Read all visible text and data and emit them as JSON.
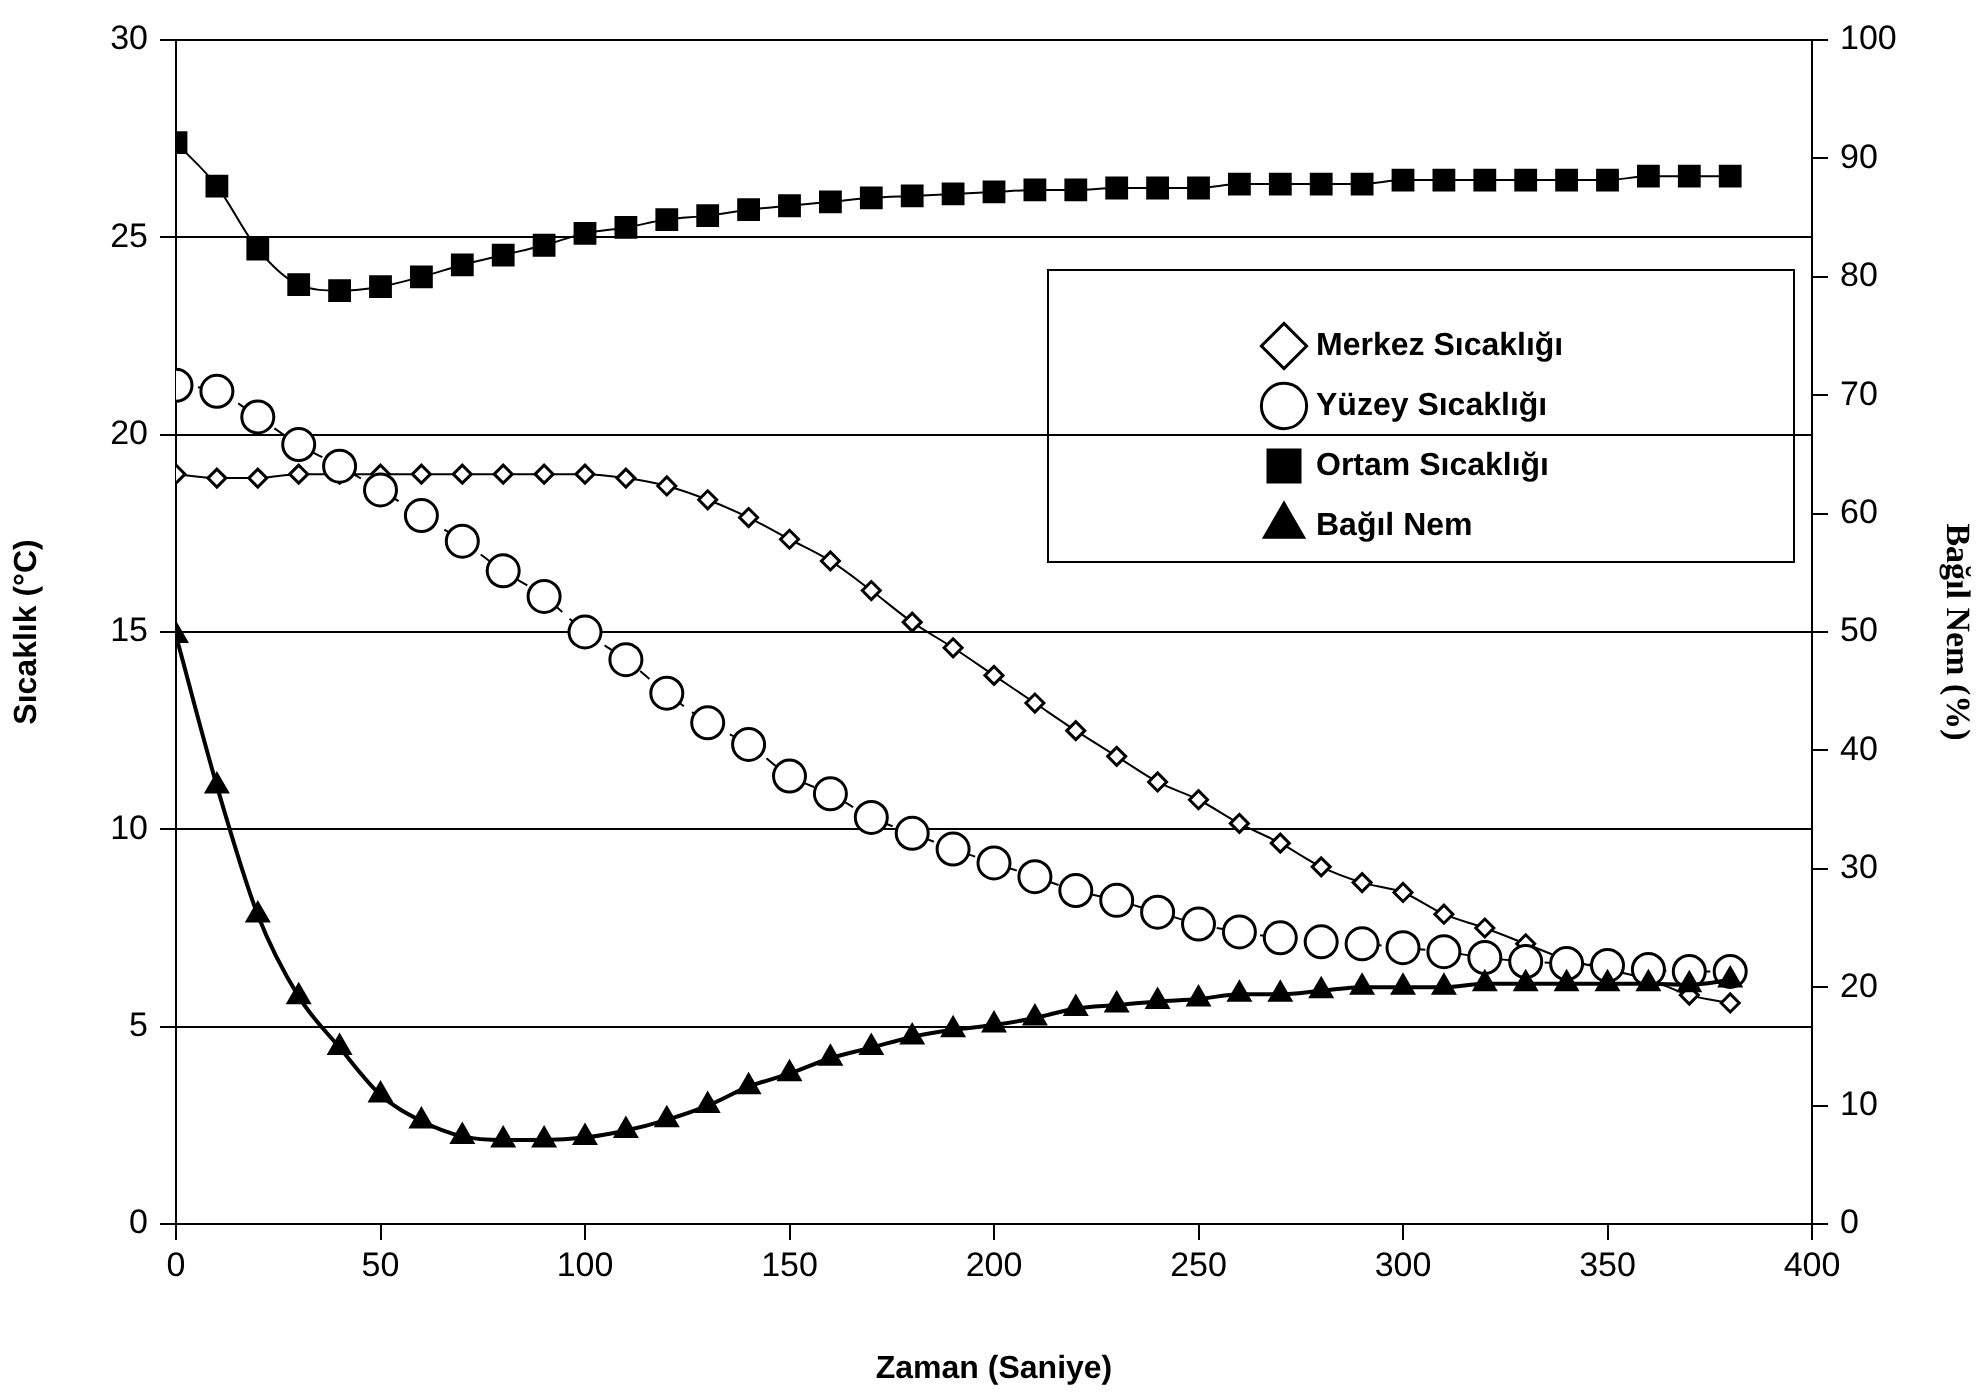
{
  "chart_data": {
    "type": "line",
    "xlabel": "Zaman (Saniye)",
    "ylabel": "Sıcaklık (°C)",
    "y2label": "Bağıl Nem (%)",
    "x": [
      0,
      10,
      20,
      30,
      40,
      50,
      60,
      70,
      80,
      90,
      100,
      110,
      120,
      130,
      140,
      150,
      160,
      170,
      180,
      190,
      200,
      210,
      220,
      230,
      240,
      250,
      260,
      270,
      280,
      290,
      300,
      310,
      320,
      330,
      340,
      350,
      360,
      370,
      380
    ],
    "series": [
      {
        "name": "Merkez Sıcaklığı",
        "color": "#000000",
        "marker": "diamond",
        "line_style": "solid",
        "values": [
          19.0,
          18.9,
          18.9,
          19.0,
          19.0,
          19.0,
          19.0,
          19.0,
          19.0,
          19.0,
          19.0,
          18.9,
          18.7,
          18.35,
          17.9,
          17.35,
          16.8,
          16.05,
          15.25,
          14.6,
          13.9,
          13.2,
          12.5,
          11.85,
          11.2,
          10.75,
          10.15,
          9.65,
          9.05,
          8.65,
          8.4,
          7.85,
          7.5,
          7.1,
          6.7,
          6.45,
          6.2,
          5.8,
          5.6
        ]
      },
      {
        "name": "Yüzey Sıcaklığı",
        "color": "#000000",
        "marker": "circle",
        "line_style": "dashed",
        "values": [
          21.25,
          21.1,
          20.45,
          19.75,
          19.2,
          18.6,
          17.95,
          17.3,
          16.55,
          15.9,
          15.0,
          14.3,
          13.45,
          12.7,
          12.15,
          11.35,
          10.9,
          10.3,
          9.9,
          9.5,
          9.15,
          8.8,
          8.45,
          8.2,
          7.9,
          7.6,
          7.4,
          7.25,
          7.15,
          7.1,
          7.0,
          6.9,
          6.75,
          6.65,
          6.6,
          6.55,
          6.45,
          6.4,
          6.4
        ]
      },
      {
        "name": "Ortam Sıcaklığı",
        "color": "#000000",
        "marker": "square",
        "line_style": "solid",
        "values": [
          27.4,
          26.3,
          24.7,
          23.8,
          23.65,
          23.75,
          24.0,
          24.3,
          24.55,
          24.8,
          25.1,
          25.25,
          25.45,
          25.55,
          25.7,
          25.8,
          25.9,
          26.0,
          26.05,
          26.1,
          26.15,
          26.2,
          26.2,
          26.25,
          26.25,
          26.25,
          26.35,
          26.35,
          26.35,
          26.35,
          26.45,
          26.45,
          26.45,
          26.45,
          26.45,
          26.45,
          26.55,
          26.55,
          26.55
        ]
      },
      {
        "name": "Bağıl Nem",
        "color": "#000000",
        "marker": "triangle",
        "line_style": "solid",
        "axis": "y2",
        "values": [
          49.7,
          37.0,
          26.1,
          19.2,
          14.9,
          10.9,
          8.7,
          7.4,
          7.1,
          7.1,
          7.3,
          7.9,
          8.8,
          10.0,
          11.6,
          12.7,
          14.0,
          14.9,
          15.8,
          16.4,
          16.8,
          17.4,
          18.2,
          18.5,
          18.8,
          19.0,
          19.4,
          19.4,
          19.7,
          20.0,
          20.0,
          20.0,
          20.3,
          20.3,
          20.3,
          20.3,
          20.3,
          20.2,
          20.6
        ]
      }
    ],
    "xlim": [
      0,
      400
    ],
    "xticks": [
      0,
      50,
      100,
      150,
      200,
      250,
      300,
      350,
      400
    ],
    "ylim": [
      0,
      30
    ],
    "yticks": [
      0,
      5,
      10,
      15,
      20,
      25,
      30
    ],
    "y2lim": [
      0,
      100
    ],
    "y2ticks": [
      0,
      10,
      20,
      30,
      40,
      50,
      60,
      70,
      80,
      90,
      100
    ],
    "grid": "y",
    "legend": "right"
  }
}
